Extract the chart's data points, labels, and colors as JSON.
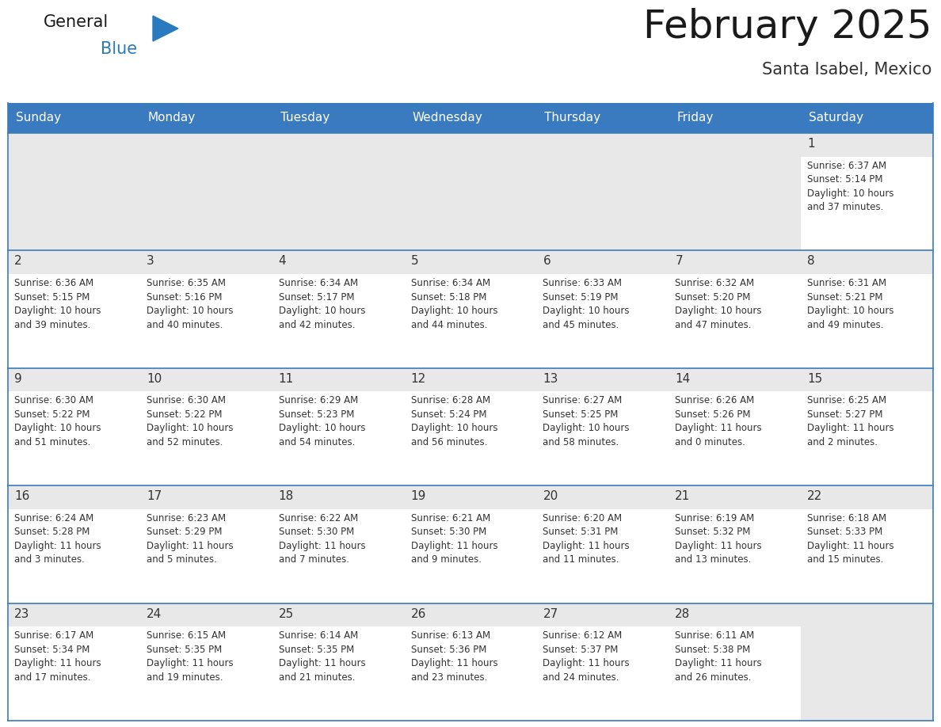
{
  "title": "February 2025",
  "subtitle": "Santa Isabel, Mexico",
  "header_color": "#3a7abf",
  "header_text_color": "#ffffff",
  "cell_bg_color": "#e8e8e8",
  "cell_content_bg": "#ffffff",
  "cell_border_color": "#3a7abf",
  "day_number_color": "#333333",
  "info_text_color": "#333333",
  "days_of_week": [
    "Sunday",
    "Monday",
    "Tuesday",
    "Wednesday",
    "Thursday",
    "Friday",
    "Saturday"
  ],
  "calendar_data": [
    [
      {
        "day": "",
        "sunrise": "",
        "sunset": "",
        "daylight": ""
      },
      {
        "day": "",
        "sunrise": "",
        "sunset": "",
        "daylight": ""
      },
      {
        "day": "",
        "sunrise": "",
        "sunset": "",
        "daylight": ""
      },
      {
        "day": "",
        "sunrise": "",
        "sunset": "",
        "daylight": ""
      },
      {
        "day": "",
        "sunrise": "",
        "sunset": "",
        "daylight": ""
      },
      {
        "day": "",
        "sunrise": "",
        "sunset": "",
        "daylight": ""
      },
      {
        "day": "1",
        "sunrise": "6:37 AM",
        "sunset": "5:14 PM",
        "daylight": "10 hours\nand 37 minutes."
      }
    ],
    [
      {
        "day": "2",
        "sunrise": "6:36 AM",
        "sunset": "5:15 PM",
        "daylight": "10 hours\nand 39 minutes."
      },
      {
        "day": "3",
        "sunrise": "6:35 AM",
        "sunset": "5:16 PM",
        "daylight": "10 hours\nand 40 minutes."
      },
      {
        "day": "4",
        "sunrise": "6:34 AM",
        "sunset": "5:17 PM",
        "daylight": "10 hours\nand 42 minutes."
      },
      {
        "day": "5",
        "sunrise": "6:34 AM",
        "sunset": "5:18 PM",
        "daylight": "10 hours\nand 44 minutes."
      },
      {
        "day": "6",
        "sunrise": "6:33 AM",
        "sunset": "5:19 PM",
        "daylight": "10 hours\nand 45 minutes."
      },
      {
        "day": "7",
        "sunrise": "6:32 AM",
        "sunset": "5:20 PM",
        "daylight": "10 hours\nand 47 minutes."
      },
      {
        "day": "8",
        "sunrise": "6:31 AM",
        "sunset": "5:21 PM",
        "daylight": "10 hours\nand 49 minutes."
      }
    ],
    [
      {
        "day": "9",
        "sunrise": "6:30 AM",
        "sunset": "5:22 PM",
        "daylight": "10 hours\nand 51 minutes."
      },
      {
        "day": "10",
        "sunrise": "6:30 AM",
        "sunset": "5:22 PM",
        "daylight": "10 hours\nand 52 minutes."
      },
      {
        "day": "11",
        "sunrise": "6:29 AM",
        "sunset": "5:23 PM",
        "daylight": "10 hours\nand 54 minutes."
      },
      {
        "day": "12",
        "sunrise": "6:28 AM",
        "sunset": "5:24 PM",
        "daylight": "10 hours\nand 56 minutes."
      },
      {
        "day": "13",
        "sunrise": "6:27 AM",
        "sunset": "5:25 PM",
        "daylight": "10 hours\nand 58 minutes."
      },
      {
        "day": "14",
        "sunrise": "6:26 AM",
        "sunset": "5:26 PM",
        "daylight": "11 hours\nand 0 minutes."
      },
      {
        "day": "15",
        "sunrise": "6:25 AM",
        "sunset": "5:27 PM",
        "daylight": "11 hours\nand 2 minutes."
      }
    ],
    [
      {
        "day": "16",
        "sunrise": "6:24 AM",
        "sunset": "5:28 PM",
        "daylight": "11 hours\nand 3 minutes."
      },
      {
        "day": "17",
        "sunrise": "6:23 AM",
        "sunset": "5:29 PM",
        "daylight": "11 hours\nand 5 minutes."
      },
      {
        "day": "18",
        "sunrise": "6:22 AM",
        "sunset": "5:30 PM",
        "daylight": "11 hours\nand 7 minutes."
      },
      {
        "day": "19",
        "sunrise": "6:21 AM",
        "sunset": "5:30 PM",
        "daylight": "11 hours\nand 9 minutes."
      },
      {
        "day": "20",
        "sunrise": "6:20 AM",
        "sunset": "5:31 PM",
        "daylight": "11 hours\nand 11 minutes."
      },
      {
        "day": "21",
        "sunrise": "6:19 AM",
        "sunset": "5:32 PM",
        "daylight": "11 hours\nand 13 minutes."
      },
      {
        "day": "22",
        "sunrise": "6:18 AM",
        "sunset": "5:33 PM",
        "daylight": "11 hours\nand 15 minutes."
      }
    ],
    [
      {
        "day": "23",
        "sunrise": "6:17 AM",
        "sunset": "5:34 PM",
        "daylight": "11 hours\nand 17 minutes."
      },
      {
        "day": "24",
        "sunrise": "6:15 AM",
        "sunset": "5:35 PM",
        "daylight": "11 hours\nand 19 minutes."
      },
      {
        "day": "25",
        "sunrise": "6:14 AM",
        "sunset": "5:35 PM",
        "daylight": "11 hours\nand 21 minutes."
      },
      {
        "day": "26",
        "sunrise": "6:13 AM",
        "sunset": "5:36 PM",
        "daylight": "11 hours\nand 23 minutes."
      },
      {
        "day": "27",
        "sunrise": "6:12 AM",
        "sunset": "5:37 PM",
        "daylight": "11 hours\nand 24 minutes."
      },
      {
        "day": "28",
        "sunrise": "6:11 AM",
        "sunset": "5:38 PM",
        "daylight": "11 hours\nand 26 minutes."
      },
      {
        "day": "",
        "sunrise": "",
        "sunset": "",
        "daylight": ""
      }
    ]
  ],
  "logo_text_general": "General",
  "logo_text_blue": "Blue",
  "logo_triangle_color": "#2a7abf",
  "fig_width": 11.88,
  "fig_height": 9.18,
  "dpi": 100
}
